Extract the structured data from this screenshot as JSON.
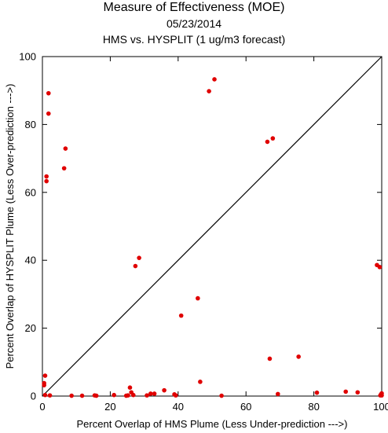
{
  "chart_data": {
    "type": "scatter",
    "title": "Measure of Effectiveness (MOE)",
    "date": "05/23/2014",
    "subtitle": "HMS vs. HYSPLIT  (1 ug/m3 forecast)",
    "xlabel": "Percent Overlap of HMS Plume (Less Under-prediction --->)",
    "ylabel": "Percent Overlap of HYSPLIT Plume (Less Over-prediction --->)",
    "xlim": [
      0,
      100
    ],
    "ylim": [
      0,
      100
    ],
    "xticks": [
      0,
      20,
      40,
      60,
      80,
      100
    ],
    "yticks": [
      0,
      20,
      40,
      60,
      80,
      100
    ],
    "reference_line": {
      "x": [
        0,
        100
      ],
      "y": [
        0,
        100
      ]
    },
    "point_color": "#e00000",
    "grid": false,
    "points": [
      [
        0.5,
        3.8
      ],
      [
        0.5,
        3.2
      ],
      [
        0.8,
        0.3
      ],
      [
        0.8,
        6.0
      ],
      [
        1.2,
        64.7
      ],
      [
        1.2,
        63.3
      ],
      [
        1.8,
        89.2
      ],
      [
        1.8,
        83.2
      ],
      [
        2.2,
        0.2
      ],
      [
        6.4,
        67.1
      ],
      [
        6.8,
        72.9
      ],
      [
        8.6,
        0.1
      ],
      [
        11.7,
        0.1
      ],
      [
        15.4,
        0.2
      ],
      [
        15.9,
        0.1
      ],
      [
        21.1,
        0.3
      ],
      [
        24.7,
        0.1
      ],
      [
        25.2,
        0.2
      ],
      [
        25.8,
        2.5
      ],
      [
        26.2,
        1.1
      ],
      [
        26.8,
        0.3
      ],
      [
        27.4,
        38.3
      ],
      [
        28.5,
        40.7
      ],
      [
        30.8,
        0.2
      ],
      [
        31.9,
        0.7
      ],
      [
        33.0,
        0.7
      ],
      [
        35.9,
        1.7
      ],
      [
        38.9,
        0.5
      ],
      [
        39.3,
        0.2
      ],
      [
        40.9,
        23.7
      ],
      [
        45.8,
        28.8
      ],
      [
        46.5,
        4.2
      ],
      [
        49.1,
        89.8
      ],
      [
        50.7,
        93.3
      ],
      [
        52.8,
        0.1
      ],
      [
        66.3,
        74.9
      ],
      [
        67.0,
        11.0
      ],
      [
        67.9,
        75.9
      ],
      [
        69.4,
        0.6
      ],
      [
        75.5,
        11.6
      ],
      [
        80.9,
        1.0
      ],
      [
        89.4,
        1.3
      ],
      [
        92.9,
        1.1
      ],
      [
        98.6,
        38.6
      ],
      [
        99.4,
        38.0
      ],
      [
        99.6,
        0.2
      ],
      [
        100.0,
        0.8
      ],
      [
        100.0,
        0.2
      ],
      [
        99.8,
        0.5
      ]
    ]
  }
}
